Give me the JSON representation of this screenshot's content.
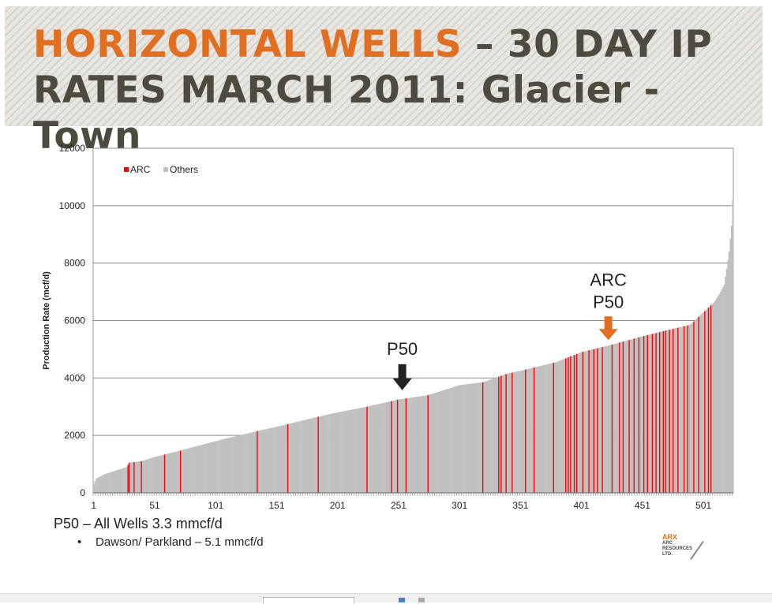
{
  "slide": {
    "title_accent": "HORIZONTAL WELLS",
    "title_rest_line1": " – 30 DAY IP",
    "title_line2": "RATES MARCH 2011: Glacier - Town",
    "caption": "P50 – All Wells 3.3 mmcf/d",
    "bullet_marker": "•",
    "bullet": "Dawson/ Parkland – 5.1 mmcf/d",
    "logo_main": "ARX",
    "logo_lines": [
      "ARC",
      "RESOURCES",
      "LTD."
    ]
  },
  "colors": {
    "accent": "#e16f22",
    "title": "#4d4b40",
    "arc_bar": "#ff0000",
    "others_bar": "#c0c0c0",
    "p50_arrow": "#222222",
    "arc_p50_arrow": "#e16f22"
  },
  "chart_data": {
    "type": "bar",
    "ylabel": "Production Rate (mcf/d)",
    "ylim": [
      0,
      12000
    ],
    "yticks": [
      0,
      2000,
      4000,
      6000,
      8000,
      10000,
      12000
    ],
    "xticks": [
      1,
      51,
      101,
      151,
      201,
      251,
      301,
      351,
      401,
      451,
      501
    ],
    "x_count": 525,
    "legend_position": "top-left",
    "series": [
      {
        "name": "ARC",
        "color": "#ff0000"
      },
      {
        "name": "Others",
        "color": "#c0c0c0"
      }
    ],
    "curve_points": [
      [
        1,
        300
      ],
      [
        3,
        500
      ],
      [
        10,
        650
      ],
      [
        28,
        900
      ],
      [
        30,
        1050
      ],
      [
        40,
        1100
      ],
      [
        51,
        1250
      ],
      [
        70,
        1450
      ],
      [
        101,
        1800
      ],
      [
        135,
        2150
      ],
      [
        151,
        2300
      ],
      [
        185,
        2650
      ],
      [
        201,
        2800
      ],
      [
        225,
        3000
      ],
      [
        251,
        3250
      ],
      [
        275,
        3400
      ],
      [
        301,
        3750
      ],
      [
        320,
        3850
      ],
      [
        340,
        4150
      ],
      [
        351,
        4250
      ],
      [
        380,
        4550
      ],
      [
        401,
        4900
      ],
      [
        425,
        5150
      ],
      [
        451,
        5450
      ],
      [
        470,
        5650
      ],
      [
        490,
        5850
      ],
      [
        500,
        6250
      ],
      [
        510,
        6650
      ],
      [
        515,
        7000
      ],
      [
        518,
        7250
      ],
      [
        520,
        7800
      ],
      [
        522,
        8400
      ],
      [
        524,
        9300
      ],
      [
        525,
        10200
      ]
    ],
    "arc_wells": [
      29,
      30,
      34,
      40,
      59,
      72,
      135,
      160,
      185,
      225,
      245,
      250,
      257,
      275,
      320,
      333,
      335,
      339,
      344,
      355,
      362,
      378,
      388,
      390,
      392,
      395,
      397,
      402,
      407,
      411,
      414,
      418,
      426,
      432,
      435,
      440,
      444,
      448,
      452,
      455,
      459,
      462,
      465,
      468,
      470,
      473,
      476,
      480,
      485,
      488,
      493,
      497,
      502,
      505,
      507
    ],
    "annotations": [
      {
        "label": "P50",
        "x": 254,
        "value": 3300
      },
      {
        "label": "ARC P50",
        "x": 423,
        "value": 5100,
        "lines": [
          "ARC",
          "P50"
        ]
      }
    ]
  }
}
